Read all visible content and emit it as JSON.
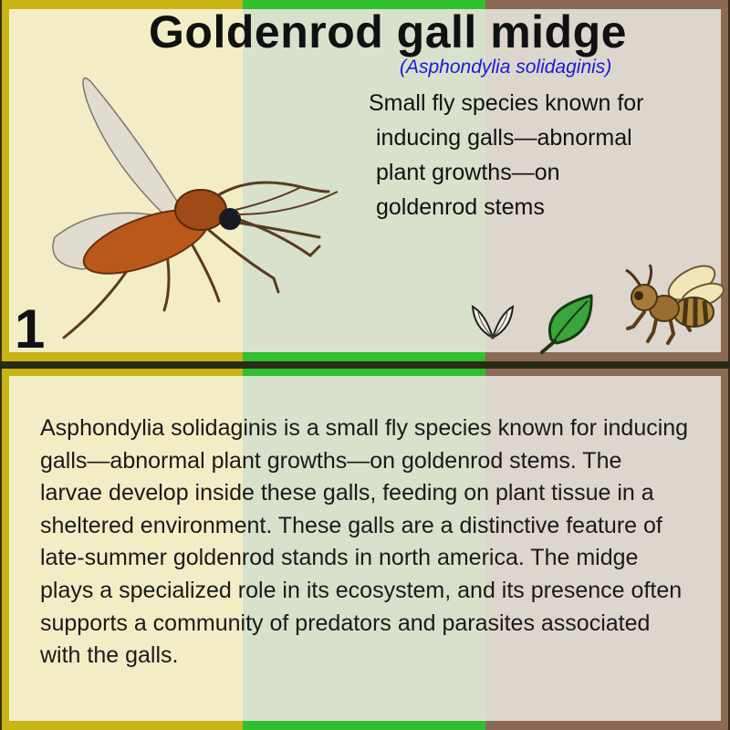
{
  "card": {
    "title": "Goldenrod gall midge",
    "scientific_name": "(Asphondylia solidaginis)",
    "short_description_lines": [
      "Small fly species known for",
      "inducing galls—abnormal",
      "plant growths—on",
      "goldenrod stems"
    ],
    "level": "1",
    "description": "Asphondylia solidaginis is a small fly species known for inducing galls—abnormal plant growths—on goldenrod stems. The larvae develop inside these galls, feeding on plant tissue in a sheltered environment. These galls are a distinctive feature of late-summer goldenrod stands in north america. The midge plays a specialized role in its ecosystem, and its presence often supports a community of predators and parasites associated with the galls.",
    "icons": [
      "wings-icon",
      "leaf-icon",
      "bee-icon",
      "midge-illustration"
    ]
  },
  "colors": {
    "band_yellow": "#f3edc6",
    "band_green": "#d7e1cc",
    "band_brown": "#ddd6cd",
    "border_yellow": "#c8b414",
    "border_green": "#2fbf2f",
    "border_brown": "#8a6a55",
    "scientific_name": "#1a1ad8"
  }
}
